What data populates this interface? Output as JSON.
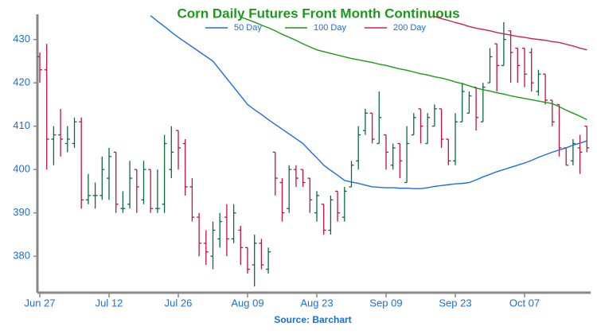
{
  "chart_data": {
    "type": "ohlc",
    "title": "Corn Daily Futures Front Month Continuous",
    "source": "Source: Barchart",
    "categories": [
      "Jun 27",
      null,
      null,
      null,
      null,
      null,
      null,
      null,
      null,
      null,
      "Jul 12",
      null,
      null,
      null,
      null,
      null,
      null,
      null,
      null,
      null,
      "Jul 26",
      null,
      null,
      null,
      null,
      null,
      null,
      null,
      null,
      null,
      "Aug 09",
      null,
      null,
      null,
      null,
      null,
      null,
      null,
      null,
      null,
      "Aug 23",
      null,
      null,
      null,
      null,
      null,
      null,
      null,
      null,
      null,
      "Sep 09",
      null,
      null,
      null,
      null,
      null,
      null,
      null,
      null,
      null,
      "Sep 23",
      null,
      null,
      null,
      null,
      null,
      null,
      null,
      null,
      null,
      "Oct 07",
      null,
      null,
      null,
      null,
      null,
      null,
      null,
      null,
      null
    ],
    "ohlc": {
      "up_color": "#0b6b3a",
      "down_color": "#c0143c",
      "open": [
        426,
        423,
        407,
        408,
        406,
        406,
        411,
        393,
        394,
        394,
        398,
        404,
        391,
        392,
        400,
        393,
        400,
        391,
        392,
        400,
        409,
        406,
        396,
        389,
        383,
        380,
        384,
        389,
        384,
        386,
        382,
        378,
        383,
        377,
        404,
        397,
        391,
        400,
        400,
        398,
        390,
        392,
        386,
        395,
        389,
        396,
        402,
        409,
        413,
        406,
        408,
        401,
        406,
        397,
        408,
        414,
        406,
        410,
        414,
        407,
        402,
        411,
        413,
        419,
        411,
        420,
        429,
        424,
        432,
        428,
        428,
        427,
        418,
        422,
        416,
        415,
        405,
        402,
        405,
        410
      ],
      "high": [
        427,
        429,
        410,
        414,
        410,
        412,
        412,
        399,
        397,
        403,
        405,
        404,
        395,
        402,
        400,
        402,
        400,
        400,
        408,
        410,
        409,
        407,
        398,
        390,
        386,
        388,
        390,
        392,
        392,
        387,
        382,
        385,
        384,
        382,
        404,
        398,
        401,
        401,
        400,
        398,
        395,
        392,
        394,
        395,
        396,
        402,
        410,
        414,
        413,
        418,
        408,
        406,
        406,
        410,
        413,
        414,
        413,
        415,
        414,
        407,
        413,
        420,
        418,
        419,
        420,
        428,
        429,
        434,
        432,
        428,
        428,
        428,
        423,
        422,
        416,
        415,
        405,
        407,
        408,
        410
      ],
      "low": [
        420,
        400,
        401,
        403,
        404,
        405,
        391,
        392,
        391,
        393,
        393,
        390,
        390,
        391,
        390,
        392,
        390,
        390,
        390,
        398,
        400,
        394,
        388,
        380,
        378,
        377,
        382,
        380,
        383,
        378,
        376,
        373,
        377,
        376,
        394,
        388,
        390,
        396,
        396,
        390,
        388,
        385,
        385,
        388,
        388,
        396,
        400,
        408,
        406,
        406,
        400,
        400,
        398,
        397,
        408,
        406,
        406,
        410,
        405,
        401,
        401,
        411,
        413,
        409,
        411,
        420,
        418,
        424,
        420,
        420,
        419,
        418,
        417,
        415,
        410,
        403,
        401,
        401,
        399,
        404
      ],
      "close": [
        423,
        407,
        408,
        407,
        407,
        411,
        393,
        394,
        394,
        400,
        403,
        392,
        391,
        398,
        396,
        400,
        391,
        391,
        406,
        404,
        405,
        396,
        389,
        383,
        381,
        386,
        388,
        384,
        390,
        382,
        377,
        383,
        378,
        381,
        398,
        390,
        400,
        398,
        397,
        393,
        394,
        386,
        393,
        390,
        395,
        401,
        408,
        413,
        407,
        412,
        404,
        405,
        402,
        406,
        412,
        410,
        412,
        414,
        407,
        402,
        411,
        418,
        417,
        412,
        419,
        426,
        424,
        430,
        427,
        424,
        422,
        420,
        422,
        416,
        411,
        405,
        401,
        406,
        404,
        405
      ]
    },
    "series": [
      {
        "name": "50 Day",
        "color": "#1a6ee0",
        "values": [
          null,
          null,
          null,
          null,
          null,
          null,
          null,
          null,
          null,
          null,
          null,
          null,
          null,
          null,
          null,
          null,
          435.5,
          434.2,
          433,
          431.7,
          430.5,
          429.4,
          428.3,
          427.2,
          426.1,
          425,
          423,
          421,
          419,
          417,
          415,
          413.8,
          412.7,
          411.5,
          410.4,
          409.3,
          408.2,
          407.1,
          406,
          404.3,
          402.7,
          401,
          399.8,
          398.7,
          397.5,
          397.1,
          396.8,
          396.4,
          396,
          395.9,
          395.8,
          395.8,
          395.7,
          395.7,
          395.6,
          395.6,
          395.8,
          396.1,
          396.3,
          396.5,
          396.7,
          396.8,
          397,
          397.6,
          398.3,
          398.9,
          399.5,
          400,
          400.5,
          401,
          401.5,
          402.1,
          402.8,
          403.4,
          404,
          404.5,
          405,
          405.6,
          406.1,
          406.6
        ]
      },
      {
        "name": "100 Day",
        "color": "#1a9a1a",
        "values": [
          null,
          null,
          null,
          null,
          null,
          null,
          null,
          null,
          null,
          null,
          null,
          null,
          null,
          null,
          null,
          null,
          null,
          null,
          null,
          null,
          null,
          null,
          null,
          null,
          null,
          null,
          null,
          null,
          null,
          435.2,
          434.6,
          434,
          433.3,
          432.7,
          432,
          431.2,
          430.5,
          429.8,
          429,
          428.3,
          427.6,
          427.2,
          426.8,
          426.4,
          426,
          425.6,
          425.3,
          425,
          424.7,
          424.3,
          424,
          423.6,
          423.2,
          422.9,
          422.5,
          422.1,
          421.8,
          421.4,
          421.1,
          420.7,
          420.2,
          419.8,
          419.3,
          418.8,
          418.4,
          418.1,
          417.7,
          417.4,
          417,
          416.7,
          416.4,
          416.1,
          415.8,
          415.5,
          415.2,
          414.5,
          413.7,
          413,
          412.3,
          411.5
        ]
      },
      {
        "name": "200 Day",
        "color": "#d0204a",
        "values": [
          null,
          null,
          null,
          null,
          null,
          null,
          null,
          null,
          null,
          null,
          null,
          null,
          null,
          null,
          null,
          null,
          null,
          null,
          null,
          null,
          null,
          null,
          null,
          null,
          null,
          null,
          null,
          null,
          null,
          null,
          null,
          null,
          null,
          null,
          null,
          null,
          null,
          null,
          null,
          null,
          null,
          null,
          null,
          null,
          null,
          null,
          null,
          null,
          null,
          null,
          null,
          null,
          null,
          null,
          null,
          null,
          null,
          435.3,
          434.8,
          434.4,
          433.9,
          433.5,
          433,
          432.6,
          432.3,
          432,
          431.6,
          431.3,
          431,
          430.7,
          430.5,
          430.2,
          430,
          429.8,
          429.5,
          429.3,
          428.9,
          428.5,
          428,
          427.6
        ]
      }
    ],
    "ylim": [
      371.6,
      435.8
    ],
    "yticks": [
      380,
      390,
      400,
      410,
      420,
      430
    ],
    "legend": "top"
  }
}
